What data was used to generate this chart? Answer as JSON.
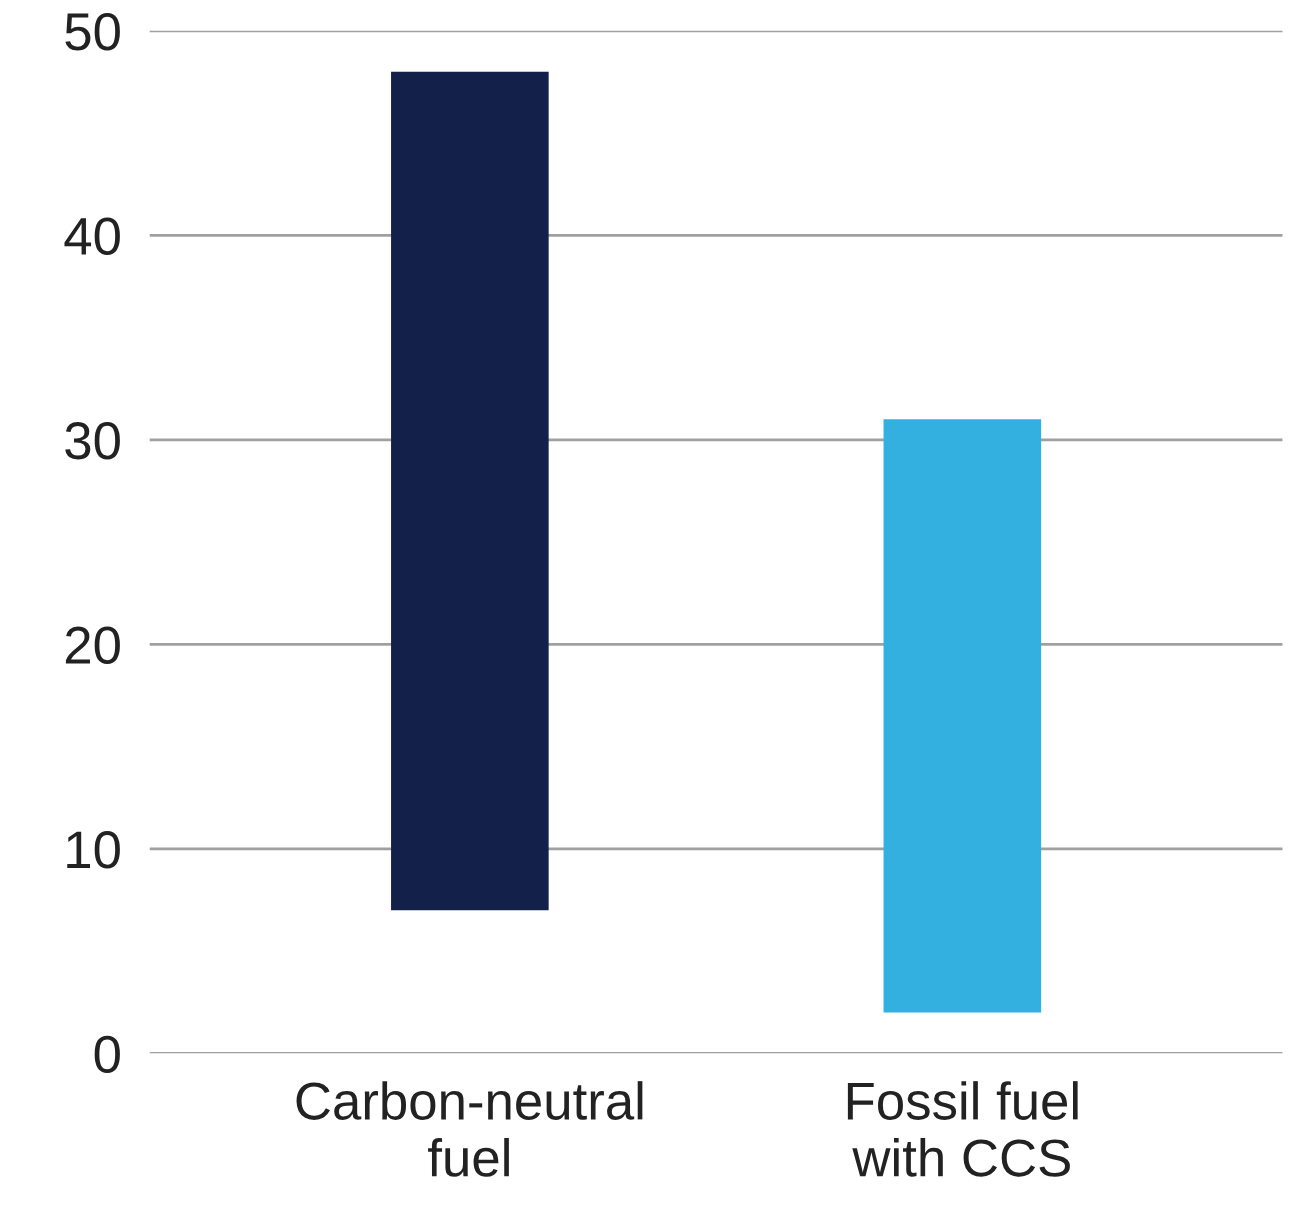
{
  "chart_data": {
    "type": "bar",
    "categories": [
      "Carbon-neutral\nfuel",
      "Fossil fuel\nwith CCS"
    ],
    "base": [
      7,
      2
    ],
    "values": [
      41,
      29
    ],
    "colors": [
      "#13214a",
      "#34b0e0"
    ],
    "ylim": [
      0,
      50
    ],
    "yticks": [
      0,
      10,
      20,
      30,
      40,
      50
    ],
    "grid": "y"
  }
}
